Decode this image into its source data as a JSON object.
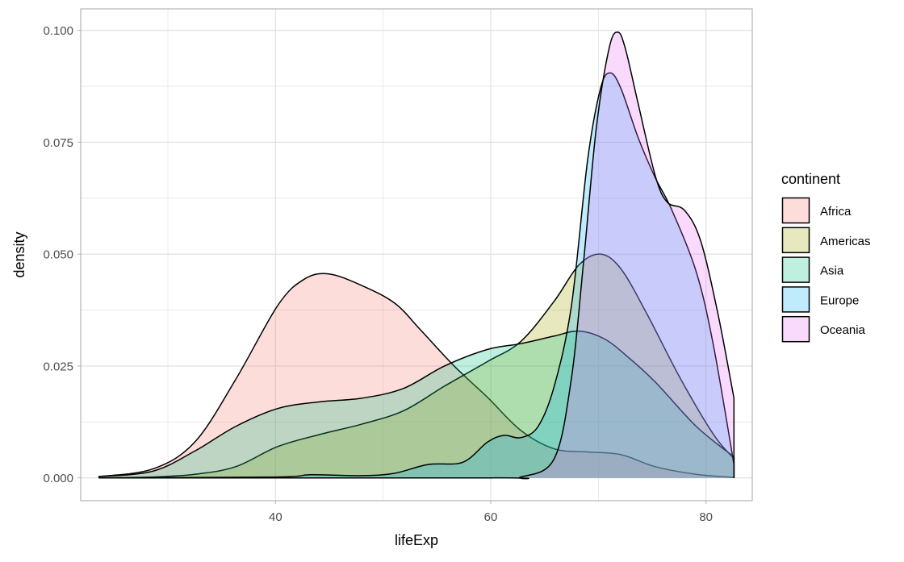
{
  "chart_data": {
    "type": "area",
    "title": "",
    "xlabel": "lifeExp",
    "ylabel": "density",
    "xlim": [
      21.9,
      84.3
    ],
    "ylim": [
      -0.0051,
      0.1048
    ],
    "xticks": [
      40,
      60,
      80
    ],
    "xtick_labels": [
      "40",
      "60",
      "80"
    ],
    "yticks": [
      0,
      0.025,
      0.05,
      0.075,
      0.1
    ],
    "ytick_labels": [
      "0.000",
      "0.025",
      "0.050",
      "0.075",
      "0.100"
    ],
    "grid": true,
    "fill_alpha": 0.25,
    "legend": {
      "title": "continent",
      "position": "right"
    },
    "series": [
      {
        "name": "Africa",
        "color": "#F8766D",
        "x": [
          23.6,
          28.6,
          32.5,
          36.3,
          40.2,
          42.6,
          44.9,
          48.0,
          51.1,
          53.5,
          56.6,
          59.7,
          62.8,
          65.9,
          69.0,
          72.1,
          75.3,
          79.1,
          82.6
        ],
        "y": [
          0.0003,
          0.002,
          0.008,
          0.022,
          0.0385,
          0.0443,
          0.0456,
          0.043,
          0.039,
          0.033,
          0.025,
          0.018,
          0.0106,
          0.0065,
          0.0058,
          0.0052,
          0.0025,
          0.0008,
          0.0001
        ]
      },
      {
        "name": "Americas",
        "color": "#A3A500",
        "x": [
          23.6,
          28.6,
          32.5,
          36.3,
          40.2,
          44.1,
          48.0,
          51.9,
          55.7,
          59.7,
          62.8,
          65.9,
          68.2,
          70.2,
          72.1,
          74.5,
          77.6,
          80.7,
          82.6
        ],
        "y": [
          0.0,
          0.0002,
          0.0008,
          0.0025,
          0.007,
          0.0097,
          0.012,
          0.015,
          0.0205,
          0.026,
          0.0305,
          0.0395,
          0.0476,
          0.05,
          0.0467,
          0.0367,
          0.0223,
          0.0097,
          0.0043
        ]
      },
      {
        "name": "Asia",
        "color": "#00BF7D",
        "x": [
          23.6,
          28.6,
          32.5,
          36.3,
          40.2,
          44.1,
          48.0,
          51.9,
          55.7,
          59.7,
          62.8,
          65.9,
          68.2,
          70.6,
          72.9,
          75.3,
          79.1,
          82.6
        ],
        "y": [
          0.0003,
          0.0015,
          0.006,
          0.0115,
          0.0155,
          0.017,
          0.0178,
          0.02,
          0.025,
          0.0287,
          0.03,
          0.0317,
          0.0328,
          0.031,
          0.0267,
          0.0214,
          0.0115,
          0.0047
        ]
      },
      {
        "name": "Europe",
        "color": "#00B0F6",
        "x": [
          23.6,
          40.0,
          43.3,
          48.0,
          51.0,
          54.2,
          57.4,
          59.7,
          61.2,
          62.8,
          64.4,
          65.9,
          67.5,
          69.0,
          70.2,
          71.1,
          72.1,
          73.7,
          75.3,
          76.8,
          79.1,
          80.7,
          82.6
        ],
        "y": [
          0.0,
          0.0002,
          0.0007,
          0.0005,
          0.001,
          0.003,
          0.0035,
          0.008,
          0.0095,
          0.009,
          0.0115,
          0.0205,
          0.0385,
          0.071,
          0.087,
          0.0905,
          0.087,
          0.076,
          0.067,
          0.06,
          0.046,
          0.0295,
          0.003
        ]
      },
      {
        "name": "Oceania",
        "color": "#E76BF3",
        "x": [
          23.6,
          60.0,
          62.8,
          65.9,
          67.5,
          68.6,
          69.8,
          71.0,
          71.8,
          72.5,
          73.7,
          75.3,
          76.4,
          78.0,
          79.5,
          81.1,
          82.6
        ],
        "y": [
          0.0,
          0.0,
          0.0002,
          0.0043,
          0.0223,
          0.0476,
          0.078,
          0.096,
          0.0996,
          0.096,
          0.0836,
          0.0674,
          0.0616,
          0.0598,
          0.053,
          0.0368,
          0.0178
        ]
      }
    ]
  }
}
